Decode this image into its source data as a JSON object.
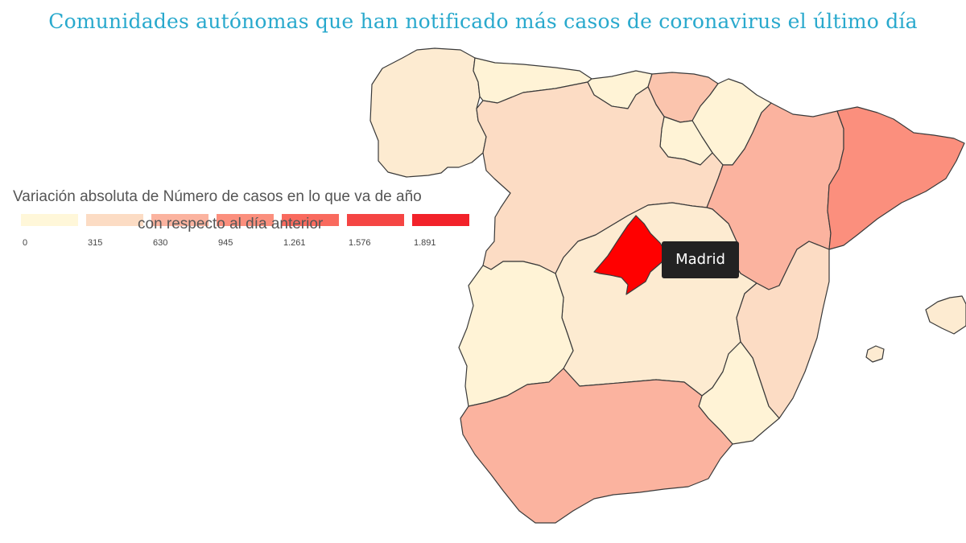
{
  "title": "Comunidades autónomas que han notificado más casos de coronavirus el último día",
  "legend": {
    "title": "Variación absoluta de Número de casos en lo que va de año",
    "subtitle": "con respecto al día anterior",
    "bins": [
      {
        "label": "0",
        "color": "#fff7d9"
      },
      {
        "label": "315",
        "color": "#fcdcc4"
      },
      {
        "label": "630",
        "color": "#fbb39f"
      },
      {
        "label": "945",
        "color": "#fb8f7d"
      },
      {
        "label": "1.261",
        "color": "#f96a5e"
      },
      {
        "label": "1.576",
        "color": "#f54543"
      },
      {
        "label": "1.891",
        "color": "#f2222a"
      }
    ]
  },
  "tooltip": {
    "label": "Madrid"
  },
  "regions": [
    {
      "name": "Galicia",
      "fill": "#fdebd1"
    },
    {
      "name": "Asturias",
      "fill": "#fff3d6"
    },
    {
      "name": "Cantabria",
      "fill": "#fff3d6"
    },
    {
      "name": "País Vasco",
      "fill": "#fbc4ad"
    },
    {
      "name": "Navarra",
      "fill": "#fff3d6"
    },
    {
      "name": "La Rioja",
      "fill": "#fff3d6"
    },
    {
      "name": "Castilla y León",
      "fill": "#fcdcc4"
    },
    {
      "name": "Aragón",
      "fill": "#fbb39f"
    },
    {
      "name": "Cataluña",
      "fill": "#fb8f7d"
    },
    {
      "name": "Madrid",
      "fill": "#ff0000"
    },
    {
      "name": "Castilla-La Mancha",
      "fill": "#fdebd1"
    },
    {
      "name": "Comunidad Valenciana",
      "fill": "#fcdcc4"
    },
    {
      "name": "Extremadura",
      "fill": "#fff3d6"
    },
    {
      "name": "Región de Murcia",
      "fill": "#fff3d6"
    },
    {
      "name": "Andalucía",
      "fill": "#fbb39f"
    },
    {
      "name": "Islas Baleares",
      "fill": "#fdebd1"
    }
  ]
}
